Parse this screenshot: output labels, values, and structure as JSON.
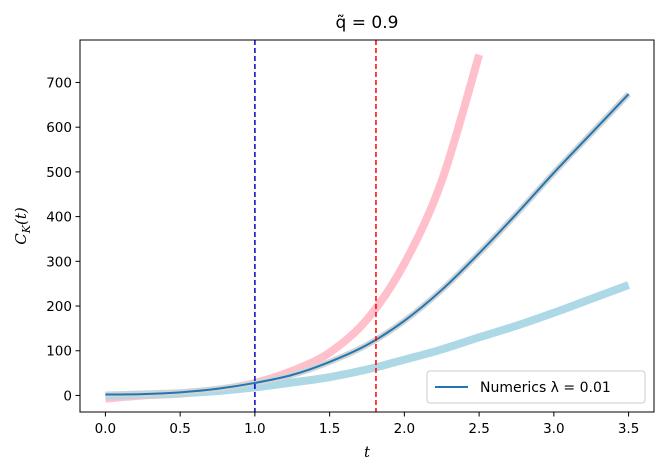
{
  "chart_data": {
    "type": "line",
    "title": "q̃ = 0.9",
    "xlabel": "t",
    "ylabel": "C_K(t)",
    "ylabel_main": "C",
    "ylabel_sub": "K",
    "ylabel_paren": "(t)",
    "xlim": [
      -0.17,
      3.67
    ],
    "ylim": [
      -37,
      795
    ],
    "xticks": [
      0.0,
      0.5,
      1.0,
      1.5,
      2.0,
      2.5,
      3.0,
      3.5
    ],
    "xtick_labels": [
      "0.0",
      "0.5",
      "1.0",
      "1.5",
      "2.0",
      "2.5",
      "3.0",
      "3.5"
    ],
    "yticks": [
      0,
      100,
      200,
      300,
      400,
      500,
      600,
      700
    ],
    "ytick_labels": [
      "0",
      "100",
      "200",
      "300",
      "400",
      "500",
      "600",
      "700"
    ],
    "grid": false,
    "legend_position": "bottom-right",
    "legend_label": "Numerics λ = 0.01",
    "series": [
      {
        "name": "pink-reference",
        "color": "#ffc0cb",
        "x": [
          0.0,
          0.25,
          0.5,
          0.75,
          1.0,
          1.25,
          1.5,
          1.75,
          2.0,
          2.25,
          2.5
        ],
        "values": [
          -7,
          0,
          4,
          12,
          28,
          55,
          96,
          170,
          295,
          480,
          762
        ]
      },
      {
        "name": "lightblue-reference",
        "color": "#add8e6",
        "x": [
          0.0,
          0.25,
          0.5,
          0.75,
          1.0,
          1.25,
          1.5,
          1.75,
          2.0,
          2.25,
          2.5,
          2.75,
          3.0,
          3.25,
          3.5
        ],
        "values": [
          0,
          2,
          5,
          10,
          18,
          29,
          41,
          58,
          80,
          103,
          130,
          156,
          185,
          216,
          247
        ]
      },
      {
        "name": "gray-reference",
        "color": "#d3d3d3",
        "x": [
          0.0,
          0.25,
          0.5,
          0.75,
          1.0,
          1.25,
          1.5,
          1.75,
          2.0,
          2.25,
          2.5,
          2.75,
          3.0,
          3.25,
          3.5
        ],
        "values": [
          2,
          3,
          7,
          15,
          28,
          46,
          75,
          113,
          167,
          236,
          318,
          406,
          498,
          586,
          674
        ]
      },
      {
        "name": "Numerics λ = 0.01",
        "color": "#1f77b4",
        "x": [
          0.0,
          0.25,
          0.5,
          0.75,
          1.0,
          1.25,
          1.5,
          1.75,
          2.0,
          2.25,
          2.5,
          2.75,
          3.0,
          3.25,
          3.5
        ],
        "values": [
          2,
          3,
          7,
          15,
          28,
          46,
          75,
          113,
          167,
          236,
          318,
          406,
          498,
          586,
          674
        ]
      }
    ],
    "vlines": [
      {
        "name": "scrambling-time-marker",
        "x": 1.0,
        "color": "#0000cc",
        "style": "dashed"
      },
      {
        "name": "ehrenfest-time-marker",
        "x": 1.81,
        "color": "#ff0000",
        "style": "dashed"
      }
    ]
  }
}
